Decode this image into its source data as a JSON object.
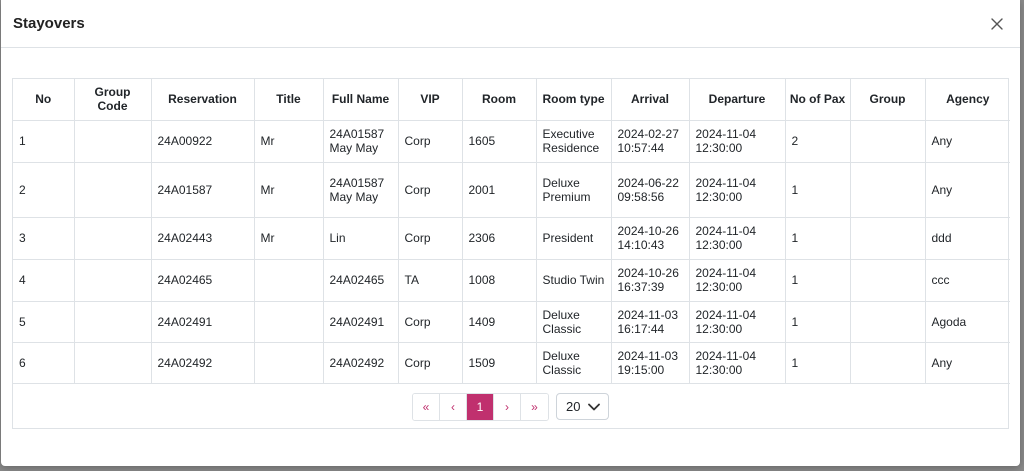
{
  "modal": {
    "title": "Stayovers",
    "close_icon": "close-icon"
  },
  "table": {
    "columns": [
      "No",
      "Group Code",
      "Reservation",
      "Title",
      "Full Name",
      "VIP",
      "Room",
      "Room type",
      "Arrival",
      "Departure",
      "No of Pax",
      "Group",
      "Agency"
    ],
    "rows": [
      {
        "no": "1",
        "group_code": "",
        "reservation": "24A00922",
        "title": "Mr",
        "full_name": "24A01587 May May",
        "vip": "Corp",
        "room": "1605",
        "room_type": "Executive Residence",
        "arrival": "2024-02-27 10:57:44",
        "departure": "2024-11-04 12:30:00",
        "pax": "2",
        "group": "",
        "agency": "Any"
      },
      {
        "no": "2",
        "group_code": "",
        "reservation": "24A01587",
        "title": "Mr",
        "full_name": "24A01587 May May",
        "vip": "Corp",
        "room": "2001",
        "room_type": "Deluxe Premium",
        "arrival": "2024-06-22 09:58:56",
        "departure": "2024-11-04 12:30:00",
        "pax": "1",
        "group": "",
        "agency": "Any"
      },
      {
        "no": "3",
        "group_code": "",
        "reservation": "24A02443",
        "title": "Mr",
        "full_name": "Lin",
        "vip": "Corp",
        "room": "2306",
        "room_type": "President",
        "arrival": "2024-10-26 14:10:43",
        "departure": "2024-11-04 12:30:00",
        "pax": "1",
        "group": "",
        "agency": "ddd"
      },
      {
        "no": "4",
        "group_code": "",
        "reservation": "24A02465",
        "title": "",
        "full_name": "24A02465",
        "vip": "TA",
        "room": "1008",
        "room_type": "Studio Twin",
        "arrival": "2024-10-26 16:37:39",
        "departure": "2024-11-04 12:30:00",
        "pax": "1",
        "group": "",
        "agency": "ccc"
      },
      {
        "no": "5",
        "group_code": "",
        "reservation": "24A02491",
        "title": "",
        "full_name": "24A02491",
        "vip": "Corp",
        "room": "1409",
        "room_type": "Deluxe Classic",
        "arrival": "2024-11-03 16:17:44",
        "departure": "2024-11-04 12:30:00",
        "pax": "1",
        "group": "",
        "agency": "Agoda"
      },
      {
        "no": "6",
        "group_code": "",
        "reservation": "24A02492",
        "title": "",
        "full_name": "24A02492",
        "vip": "Corp",
        "room": "1509",
        "room_type": "Deluxe Classic",
        "arrival": "2024-11-03 19:15:00",
        "departure": "2024-11-04 12:30:00",
        "pax": "1",
        "group": "",
        "agency": "Any"
      }
    ]
  },
  "pagination": {
    "first_label": "«",
    "prev_label": "‹",
    "current_page": "1",
    "next_label": "›",
    "last_label": "»",
    "page_size": "20",
    "accent_color": "#c0306e"
  }
}
